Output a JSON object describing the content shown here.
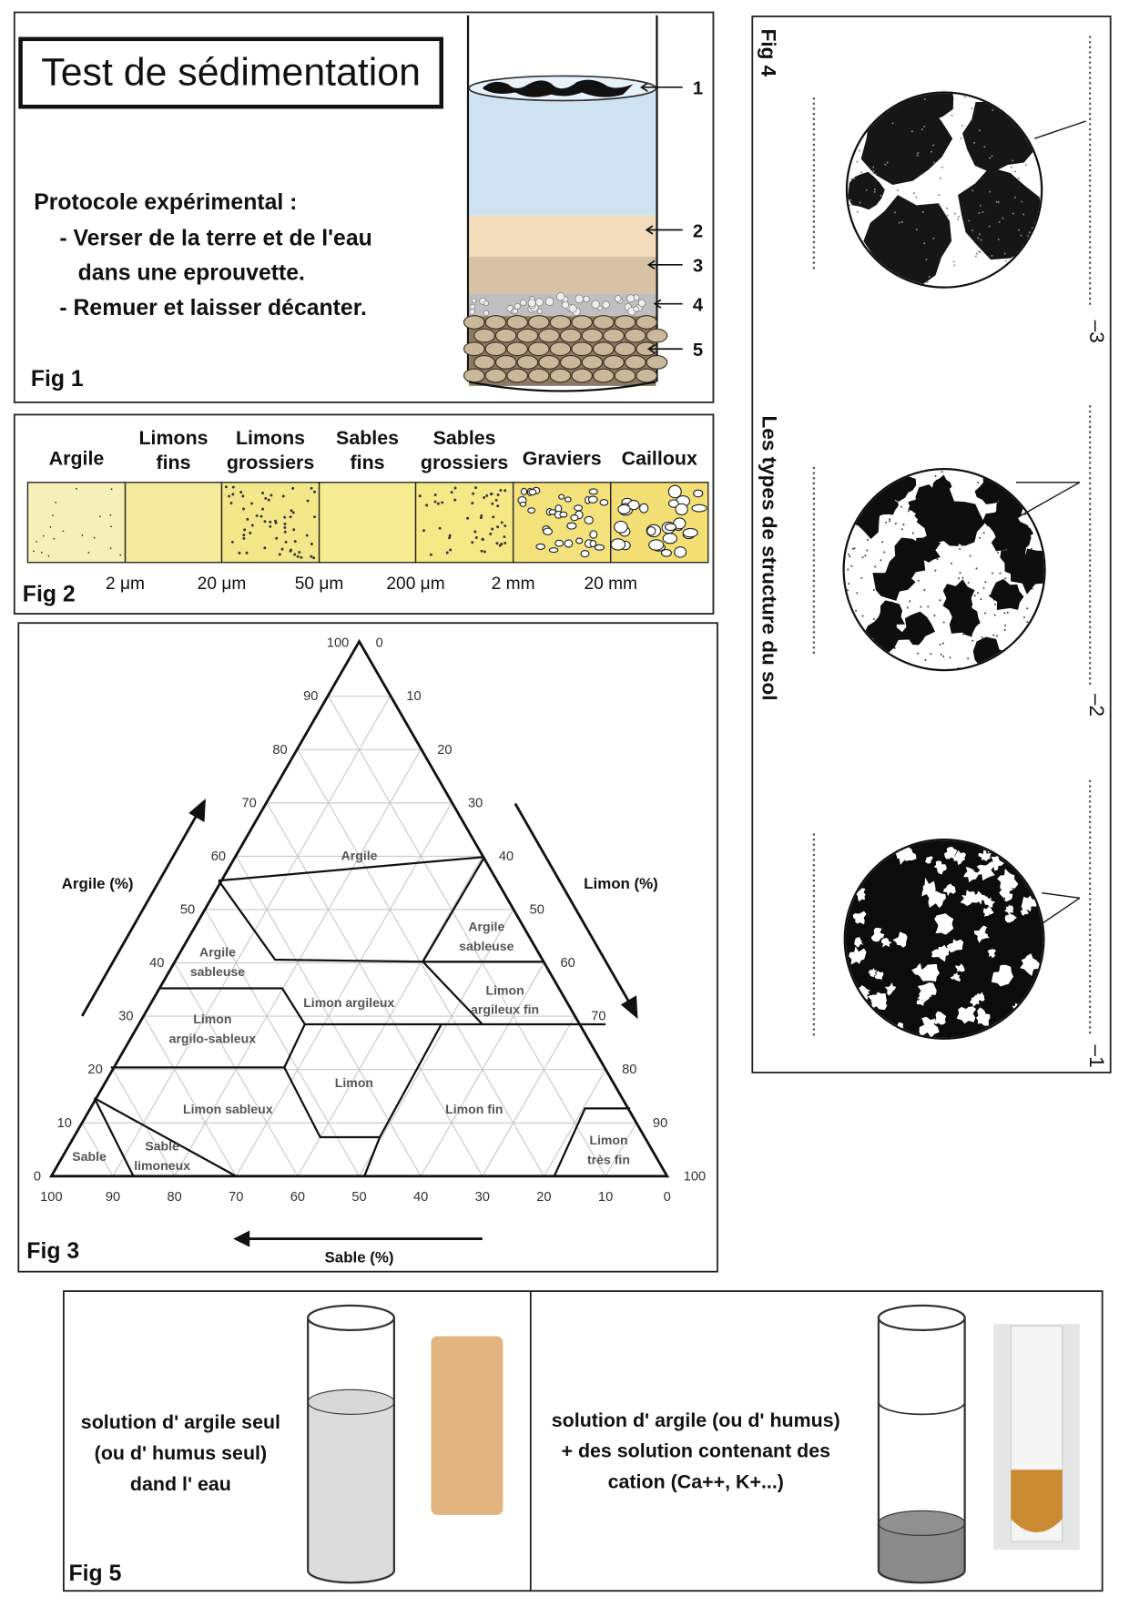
{
  "fig1": {
    "title": "Test de sédimentation",
    "protocol_title": "Protocole expérimental :",
    "steps": [
      "- Verser de la terre et de l'eau",
      "dans une eprouvette.",
      "- Remuer et laisser décanter."
    ],
    "layer_labels": [
      "1",
      "2",
      "3",
      "4",
      "5"
    ],
    "label": "Fig 1"
  },
  "fig2": {
    "fractions": [
      [
        "Argile"
      ],
      [
        "Limons",
        "fins"
      ],
      [
        "Limons",
        "grossiers"
      ],
      [
        "Sables",
        "fins"
      ],
      [
        "Sables",
        "grossiers"
      ],
      [
        "Graviers"
      ],
      [
        "Cailloux"
      ]
    ],
    "limits": [
      "2 μm",
      "20 μm",
      "50 μm",
      "200 μm",
      "2 mm",
      "20 mm"
    ],
    "label": "Fig 2"
  },
  "fig3": {
    "argile_axis": "Argile (%)",
    "limon_axis": "Limon (%)",
    "sable_axis": "Sable (%)",
    "argile_ticks": [
      0,
      10,
      20,
      30,
      40,
      50,
      60,
      70,
      80,
      90,
      100
    ],
    "limon_ticks": [
      0,
      10,
      20,
      30,
      40,
      50,
      60,
      70,
      80,
      90,
      100
    ],
    "sable_ticks": [
      100,
      90,
      80,
      70,
      60,
      50,
      40,
      30,
      20,
      10,
      0
    ],
    "regions": [
      [
        "Argile"
      ],
      [
        "Argile",
        "sableuse"
      ],
      [
        "Argile",
        "sableuse"
      ],
      [
        "Limon argileux"
      ],
      [
        "Limon",
        "argileux fin"
      ],
      [
        "Limon",
        "argilo-sableux"
      ],
      [
        "Limon"
      ],
      [
        "Limon sableux"
      ],
      [
        "Limon fin"
      ],
      [
        "Sable"
      ],
      [
        "Sable",
        "limoneux"
      ],
      [
        "Limon",
        "très fin"
      ]
    ],
    "label": "Fig 3"
  },
  "fig4": {
    "label": "Fig 4",
    "title": "Les types de structure du sol",
    "structures": [
      "–3",
      "–2",
      "–1"
    ]
  },
  "fig5": {
    "left": [
      "solution d' argile seul",
      "(ou d' humus seul)",
      "dand l' eau"
    ],
    "right": [
      "solution d' argile (ou d' humus)",
      "+ des solution contenant des",
      "cation (Ca++, K+...)"
    ],
    "label": "Fig 5"
  }
}
